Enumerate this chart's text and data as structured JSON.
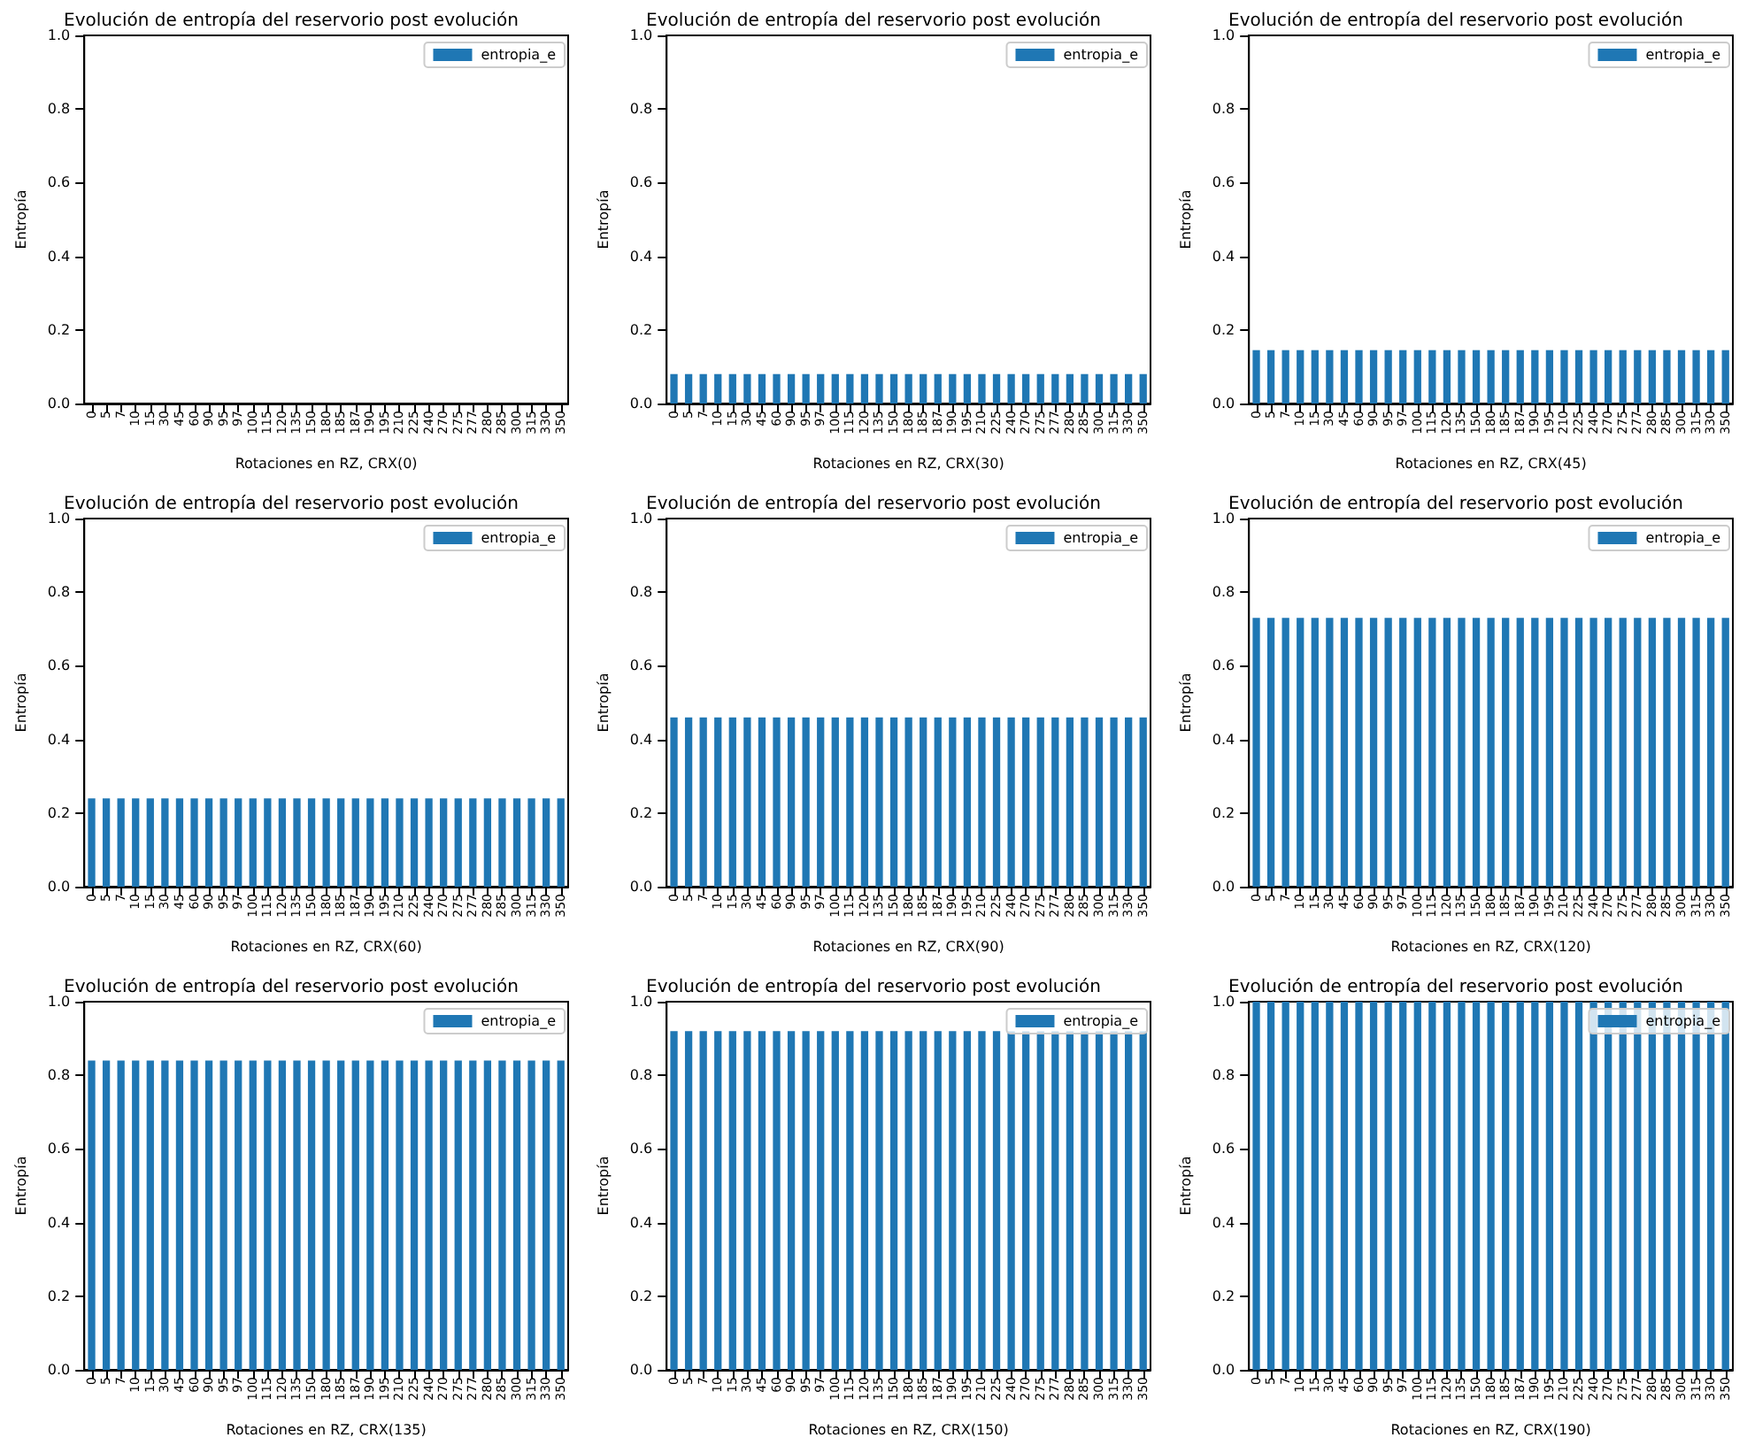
{
  "chart_data": [
    {
      "type": "bar",
      "title": "Evolución de entropía del reservorio post evolución",
      "xlabel": "Rotaciones en RZ, CRX(0)",
      "ylabel": "Entropía",
      "legend": "top right",
      "grid": false,
      "ylim": [
        0,
        1
      ],
      "yticks": [
        {
          "value": 0,
          "label": "0.0"
        },
        {
          "value": 0.2,
          "label": "0.2"
        },
        {
          "value": 0.4,
          "label": "0.4"
        },
        {
          "value": 0.6,
          "label": "0.6"
        },
        {
          "value": 0.8,
          "label": "0.8"
        },
        {
          "value": 1,
          "label": "1.0"
        }
      ],
      "categories": [
        "0",
        "5",
        "7",
        "10",
        "15",
        "30",
        "45",
        "60",
        "90",
        "95",
        "97",
        "100",
        "115",
        "120",
        "135",
        "150",
        "180",
        "185",
        "187",
        "190",
        "195",
        "210",
        "225",
        "240",
        "270",
        "275",
        "277",
        "280",
        "285",
        "300",
        "315",
        "330",
        "350"
      ],
      "series": [
        {
          "name": "entropia_e",
          "color": "#1f77b4",
          "values": [
            0,
            0,
            0,
            0,
            0,
            0,
            0,
            0,
            0,
            0,
            0,
            0,
            0,
            0,
            0,
            0,
            0,
            0,
            0,
            0,
            0,
            0,
            0,
            0,
            0,
            0,
            0,
            0,
            0,
            0,
            0,
            0,
            0
          ]
        }
      ]
    },
    {
      "type": "bar",
      "title": "Evolución de entropía del reservorio post evolución",
      "xlabel": "Rotaciones en RZ, CRX(30)",
      "ylabel": "Entropía",
      "legend": "top right",
      "grid": false,
      "ylim": [
        0,
        1
      ],
      "yticks": [
        {
          "value": 0,
          "label": "0.0"
        },
        {
          "value": 0.2,
          "label": "0.2"
        },
        {
          "value": 0.4,
          "label": "0.4"
        },
        {
          "value": 0.6,
          "label": "0.6"
        },
        {
          "value": 0.8,
          "label": "0.8"
        },
        {
          "value": 1,
          "label": "1.0"
        }
      ],
      "categories": [
        "0",
        "5",
        "7",
        "10",
        "15",
        "30",
        "45",
        "60",
        "90",
        "95",
        "97",
        "100",
        "115",
        "120",
        "135",
        "150",
        "180",
        "185",
        "187",
        "190",
        "195",
        "210",
        "225",
        "240",
        "270",
        "275",
        "277",
        "280",
        "285",
        "300",
        "315",
        "330",
        "350"
      ],
      "series": [
        {
          "name": "entropia_e",
          "color": "#1f77b4",
          "values": [
            0.08,
            0.08,
            0.08,
            0.08,
            0.08,
            0.08,
            0.08,
            0.08,
            0.08,
            0.08,
            0.08,
            0.08,
            0.08,
            0.08,
            0.08,
            0.08,
            0.08,
            0.08,
            0.08,
            0.08,
            0.08,
            0.08,
            0.08,
            0.08,
            0.08,
            0.08,
            0.08,
            0.08,
            0.08,
            0.08,
            0.08,
            0.08,
            0.08
          ]
        }
      ]
    },
    {
      "type": "bar",
      "title": "Evolución de entropía del reservorio post evolución",
      "xlabel": "Rotaciones en RZ, CRX(45)",
      "ylabel": "Entropía",
      "legend": "top right",
      "grid": false,
      "ylim": [
        0,
        1
      ],
      "yticks": [
        {
          "value": 0,
          "label": "0.0"
        },
        {
          "value": 0.2,
          "label": "0.2"
        },
        {
          "value": 0.4,
          "label": "0.4"
        },
        {
          "value": 0.6,
          "label": "0.6"
        },
        {
          "value": 0.8,
          "label": "0.8"
        },
        {
          "value": 1,
          "label": "1.0"
        }
      ],
      "categories": [
        "0",
        "5",
        "7",
        "10",
        "15",
        "30",
        "45",
        "60",
        "90",
        "95",
        "97",
        "100",
        "115",
        "120",
        "135",
        "150",
        "180",
        "185",
        "187",
        "190",
        "195",
        "210",
        "225",
        "240",
        "270",
        "275",
        "277",
        "280",
        "285",
        "300",
        "315",
        "330",
        "350"
      ],
      "series": [
        {
          "name": "entropia_e",
          "color": "#1f77b4",
          "values": [
            0.145,
            0.145,
            0.145,
            0.145,
            0.145,
            0.145,
            0.145,
            0.145,
            0.145,
            0.145,
            0.145,
            0.145,
            0.145,
            0.145,
            0.145,
            0.145,
            0.145,
            0.145,
            0.145,
            0.145,
            0.145,
            0.145,
            0.145,
            0.145,
            0.145,
            0.145,
            0.145,
            0.145,
            0.145,
            0.145,
            0.145,
            0.145,
            0.145
          ]
        }
      ]
    },
    {
      "type": "bar",
      "title": "Evolución de entropía del reservorio post evolución",
      "xlabel": "Rotaciones en RZ, CRX(60)",
      "ylabel": "Entropía",
      "legend": "top right",
      "grid": false,
      "ylim": [
        0,
        1
      ],
      "yticks": [
        {
          "value": 0,
          "label": "0.0"
        },
        {
          "value": 0.2,
          "label": "0.2"
        },
        {
          "value": 0.4,
          "label": "0.4"
        },
        {
          "value": 0.6,
          "label": "0.6"
        },
        {
          "value": 0.8,
          "label": "0.8"
        },
        {
          "value": 1,
          "label": "1.0"
        }
      ],
      "categories": [
        "0",
        "5",
        "7",
        "10",
        "15",
        "30",
        "45",
        "60",
        "90",
        "95",
        "97",
        "100",
        "115",
        "120",
        "135",
        "150",
        "180",
        "185",
        "187",
        "190",
        "195",
        "210",
        "225",
        "240",
        "270",
        "275",
        "277",
        "280",
        "285",
        "300",
        "315",
        "330",
        "350"
      ],
      "series": [
        {
          "name": "entropia_e",
          "color": "#1f77b4",
          "values": [
            0.24,
            0.24,
            0.24,
            0.24,
            0.24,
            0.24,
            0.24,
            0.24,
            0.24,
            0.24,
            0.24,
            0.24,
            0.24,
            0.24,
            0.24,
            0.24,
            0.24,
            0.24,
            0.24,
            0.24,
            0.24,
            0.24,
            0.24,
            0.24,
            0.24,
            0.24,
            0.24,
            0.24,
            0.24,
            0.24,
            0.24,
            0.24,
            0.24
          ]
        }
      ]
    },
    {
      "type": "bar",
      "title": "Evolución de entropía del reservorio post evolución",
      "xlabel": "Rotaciones en RZ, CRX(90)",
      "ylabel": "Entropía",
      "legend": "top right",
      "grid": false,
      "ylim": [
        0,
        1
      ],
      "yticks": [
        {
          "value": 0,
          "label": "0.0"
        },
        {
          "value": 0.2,
          "label": "0.2"
        },
        {
          "value": 0.4,
          "label": "0.4"
        },
        {
          "value": 0.6,
          "label": "0.6"
        },
        {
          "value": 0.8,
          "label": "0.8"
        },
        {
          "value": 1,
          "label": "1.0"
        }
      ],
      "categories": [
        "0",
        "5",
        "7",
        "10",
        "15",
        "30",
        "45",
        "60",
        "90",
        "95",
        "97",
        "100",
        "115",
        "120",
        "135",
        "150",
        "180",
        "185",
        "187",
        "190",
        "195",
        "210",
        "225",
        "240",
        "270",
        "275",
        "277",
        "280",
        "285",
        "300",
        "315",
        "330",
        "350"
      ],
      "series": [
        {
          "name": "entropia_e",
          "color": "#1f77b4",
          "values": [
            0.46,
            0.46,
            0.46,
            0.46,
            0.46,
            0.46,
            0.46,
            0.46,
            0.46,
            0.46,
            0.46,
            0.46,
            0.46,
            0.46,
            0.46,
            0.46,
            0.46,
            0.46,
            0.46,
            0.46,
            0.46,
            0.46,
            0.46,
            0.46,
            0.46,
            0.46,
            0.46,
            0.46,
            0.46,
            0.46,
            0.46,
            0.46,
            0.46
          ]
        }
      ]
    },
    {
      "type": "bar",
      "title": "Evolución de entropía del reservorio post evolución",
      "xlabel": "Rotaciones en RZ, CRX(120)",
      "ylabel": "Entropía",
      "legend": "top right",
      "grid": false,
      "ylim": [
        0,
        1
      ],
      "yticks": [
        {
          "value": 0,
          "label": "0.0"
        },
        {
          "value": 0.2,
          "label": "0.2"
        },
        {
          "value": 0.4,
          "label": "0.4"
        },
        {
          "value": 0.6,
          "label": "0.6"
        },
        {
          "value": 0.8,
          "label": "0.8"
        },
        {
          "value": 1,
          "label": "1.0"
        }
      ],
      "categories": [
        "0",
        "5",
        "7",
        "10",
        "15",
        "30",
        "45",
        "60",
        "90",
        "95",
        "97",
        "100",
        "115",
        "120",
        "135",
        "150",
        "180",
        "185",
        "187",
        "190",
        "195",
        "210",
        "225",
        "240",
        "270",
        "275",
        "277",
        "280",
        "285",
        "300",
        "315",
        "330",
        "350"
      ],
      "series": [
        {
          "name": "entropia_e",
          "color": "#1f77b4",
          "values": [
            0.73,
            0.73,
            0.73,
            0.73,
            0.73,
            0.73,
            0.73,
            0.73,
            0.73,
            0.73,
            0.73,
            0.73,
            0.73,
            0.73,
            0.73,
            0.73,
            0.73,
            0.73,
            0.73,
            0.73,
            0.73,
            0.73,
            0.73,
            0.73,
            0.73,
            0.73,
            0.73,
            0.73,
            0.73,
            0.73,
            0.73,
            0.73,
            0.73
          ]
        }
      ]
    },
    {
      "type": "bar",
      "title": "Evolución de entropía del reservorio post evolución",
      "xlabel": "Rotaciones en RZ, CRX(135)",
      "ylabel": "Entropía",
      "legend": "top right",
      "grid": false,
      "ylim": [
        0,
        1
      ],
      "yticks": [
        {
          "value": 0,
          "label": "0.0"
        },
        {
          "value": 0.2,
          "label": "0.2"
        },
        {
          "value": 0.4,
          "label": "0.4"
        },
        {
          "value": 0.6,
          "label": "0.6"
        },
        {
          "value": 0.8,
          "label": "0.8"
        },
        {
          "value": 1,
          "label": "1.0"
        }
      ],
      "categories": [
        "0",
        "5",
        "7",
        "10",
        "15",
        "30",
        "45",
        "60",
        "90",
        "95",
        "97",
        "100",
        "115",
        "120",
        "135",
        "150",
        "180",
        "185",
        "187",
        "190",
        "195",
        "210",
        "225",
        "240",
        "270",
        "275",
        "277",
        "280",
        "285",
        "300",
        "315",
        "330",
        "350"
      ],
      "series": [
        {
          "name": "entropia_e",
          "color": "#1f77b4",
          "values": [
            0.84,
            0.84,
            0.84,
            0.84,
            0.84,
            0.84,
            0.84,
            0.84,
            0.84,
            0.84,
            0.84,
            0.84,
            0.84,
            0.84,
            0.84,
            0.84,
            0.84,
            0.84,
            0.84,
            0.84,
            0.84,
            0.84,
            0.84,
            0.84,
            0.84,
            0.84,
            0.84,
            0.84,
            0.84,
            0.84,
            0.84,
            0.84,
            0.84
          ]
        }
      ]
    },
    {
      "type": "bar",
      "title": "Evolución de entropía del reservorio post evolución",
      "xlabel": "Rotaciones en RZ, CRX(150)",
      "ylabel": "Entropía",
      "legend": "top right",
      "grid": false,
      "ylim": [
        0,
        1
      ],
      "yticks": [
        {
          "value": 0,
          "label": "0.0"
        },
        {
          "value": 0.2,
          "label": "0.2"
        },
        {
          "value": 0.4,
          "label": "0.4"
        },
        {
          "value": 0.6,
          "label": "0.6"
        },
        {
          "value": 0.8,
          "label": "0.8"
        },
        {
          "value": 1,
          "label": "1.0"
        }
      ],
      "categories": [
        "0",
        "5",
        "7",
        "10",
        "15",
        "30",
        "45",
        "60",
        "90",
        "95",
        "97",
        "100",
        "115",
        "120",
        "135",
        "150",
        "180",
        "185",
        "187",
        "190",
        "195",
        "210",
        "225",
        "240",
        "270",
        "275",
        "277",
        "280",
        "285",
        "300",
        "315",
        "330",
        "350"
      ],
      "series": [
        {
          "name": "entropia_e",
          "color": "#1f77b4",
          "values": [
            0.92,
            0.92,
            0.92,
            0.92,
            0.92,
            0.92,
            0.92,
            0.92,
            0.92,
            0.92,
            0.92,
            0.92,
            0.92,
            0.92,
            0.92,
            0.92,
            0.92,
            0.92,
            0.92,
            0.92,
            0.92,
            0.92,
            0.92,
            0.92,
            0.92,
            0.92,
            0.92,
            0.92,
            0.92,
            0.92,
            0.92,
            0.92,
            0.92
          ]
        }
      ]
    },
    {
      "type": "bar",
      "title": "Evolución de entropía del reservorio post evolución",
      "xlabel": "Rotaciones en RZ, CRX(190)",
      "ylabel": "Entropía",
      "legend": "top right",
      "grid": false,
      "ylim": [
        0,
        1
      ],
      "yticks": [
        {
          "value": 0,
          "label": "0.0"
        },
        {
          "value": 0.2,
          "label": "0.2"
        },
        {
          "value": 0.4,
          "label": "0.4"
        },
        {
          "value": 0.6,
          "label": "0.6"
        },
        {
          "value": 0.8,
          "label": "0.8"
        },
        {
          "value": 1,
          "label": "1.0"
        }
      ],
      "categories": [
        "0",
        "5",
        "7",
        "10",
        "15",
        "30",
        "45",
        "60",
        "90",
        "95",
        "97",
        "100",
        "115",
        "120",
        "135",
        "150",
        "180",
        "185",
        "187",
        "190",
        "195",
        "210",
        "225",
        "240",
        "270",
        "275",
        "277",
        "280",
        "285",
        "300",
        "315",
        "330",
        "350"
      ],
      "series": [
        {
          "name": "entropia_e",
          "color": "#1f77b4",
          "values": [
            1,
            1,
            1,
            1,
            1,
            1,
            1,
            1,
            1,
            1,
            1,
            1,
            1,
            1,
            1,
            1,
            1,
            1,
            1,
            1,
            1,
            1,
            1,
            1,
            1,
            1,
            1,
            1,
            1,
            1,
            1,
            1,
            1
          ]
        }
      ]
    }
  ]
}
